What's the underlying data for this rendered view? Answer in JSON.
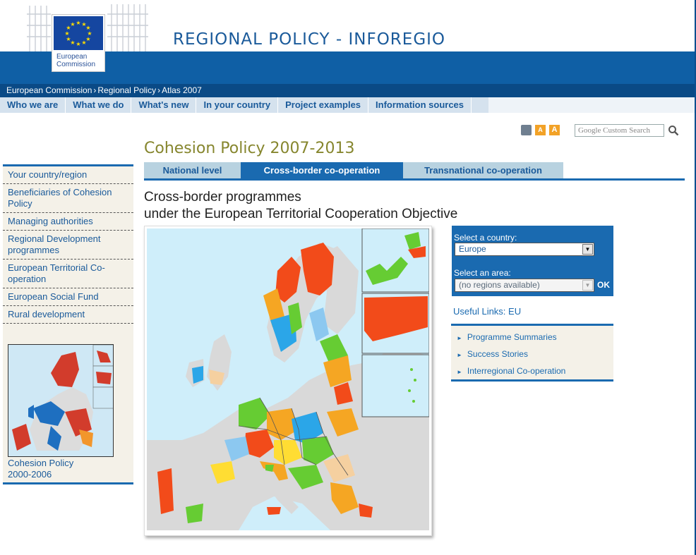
{
  "header": {
    "title": "REGIONAL POLICY - INFOREGIO",
    "logo_text_line1": "European",
    "logo_text_line2": "Commission"
  },
  "breadcrumb": [
    "European Commission",
    "Regional Policy",
    "Atlas 2007"
  ],
  "menu": [
    "Who we are",
    "What we do",
    "What's new",
    "In your country",
    "Project examples",
    "Information sources"
  ],
  "tools": {
    "print_icon": "printer-icon",
    "font_small_label": "A",
    "font_large_label": "A",
    "search_placeholder": "Google Custom Search"
  },
  "page_title": "Cohesion Policy 2007-2013",
  "tabs": [
    "National level",
    "Cross-border co-operation",
    "Transnational co-operation"
  ],
  "active_tab": "Cross-border co-operation",
  "sub_heading_line1": "Cross-border programmes",
  "sub_heading_line2": "under the European Territorial Cooperation Objective",
  "sidebar": {
    "items": [
      "Your country/region",
      "Beneficiaries of Cohesion Policy",
      "Managing authorities",
      "Regional Development programmes",
      "European Territorial Co-operation",
      "European Social Fund",
      "Rural development"
    ],
    "thumb_caption_line1": "Cohesion Policy",
    "thumb_caption_line2": "2000-2006"
  },
  "selector": {
    "country_label": "Select a country:",
    "country_value": "Europe",
    "area_label": "Select an area:",
    "area_value": "(no regions available)",
    "ok_label": "OK"
  },
  "useful_links": {
    "title": "Useful Links: EU",
    "items": [
      "Programme Summaries",
      "Success Stories",
      "Interregional Co-operation"
    ]
  },
  "colors": {
    "brand_blue": "#0f5fa5",
    "tab_active": "#1a6ab0",
    "title_olive": "#86862e",
    "map_sea": "#cfeefa"
  }
}
